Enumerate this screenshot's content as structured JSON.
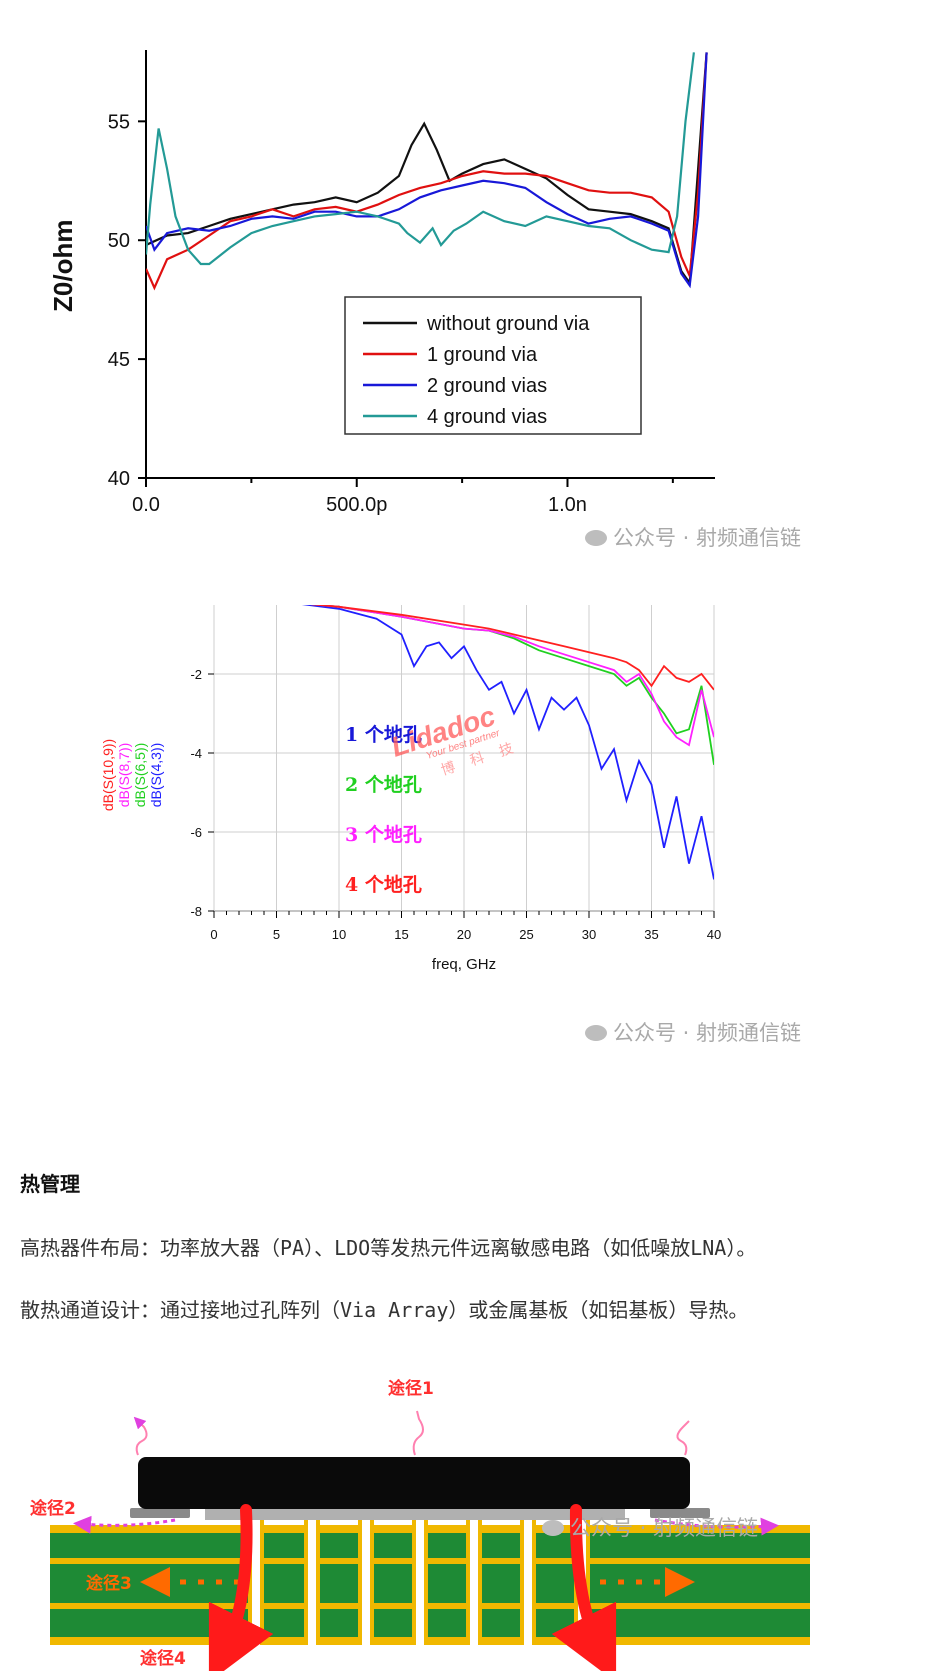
{
  "chart_data": [
    {
      "type": "line",
      "title": "",
      "ylabel": "Z0/ohm",
      "xlabel": "",
      "ylim": [
        40,
        58
      ],
      "xlim": [
        0,
        1.35
      ],
      "x_tick_labels": [
        "0.0",
        "500.0p",
        "1.0n"
      ],
      "y_tick_labels": [
        "40",
        "45",
        "50",
        "55"
      ],
      "legend_position": "center-right",
      "series": [
        {
          "name": "without ground via",
          "color": "#111111",
          "points": [
            [
              0,
              49.8
            ],
            [
              0.05,
              50.2
            ],
            [
              0.1,
              50.3
            ],
            [
              0.15,
              50.6
            ],
            [
              0.2,
              50.9
            ],
            [
              0.25,
              51.1
            ],
            [
              0.3,
              51.3
            ],
            [
              0.35,
              51.5
            ],
            [
              0.4,
              51.6
            ],
            [
              0.45,
              51.8
            ],
            [
              0.5,
              51.6
            ],
            [
              0.55,
              52.0
            ],
            [
              0.6,
              52.7
            ],
            [
              0.63,
              54.0
            ],
            [
              0.66,
              54.9
            ],
            [
              0.69,
              53.8
            ],
            [
              0.72,
              52.5
            ],
            [
              0.75,
              52.8
            ],
            [
              0.8,
              53.2
            ],
            [
              0.85,
              53.4
            ],
            [
              0.9,
              53.0
            ],
            [
              0.95,
              52.6
            ],
            [
              1.0,
              51.9
            ],
            [
              1.05,
              51.3
            ],
            [
              1.1,
              51.2
            ],
            [
              1.15,
              51.1
            ],
            [
              1.2,
              50.8
            ],
            [
              1.24,
              50.5
            ],
            [
              1.27,
              48.7
            ],
            [
              1.29,
              48.2
            ],
            [
              1.31,
              53.0
            ],
            [
              1.33,
              57.9
            ]
          ]
        },
        {
          "name": "1 ground via",
          "color": "#e01010",
          "points": [
            [
              0,
              48.8
            ],
            [
              0.02,
              48.0
            ],
            [
              0.05,
              49.2
            ],
            [
              0.1,
              49.6
            ],
            [
              0.15,
              50.2
            ],
            [
              0.2,
              50.8
            ],
            [
              0.25,
              51.0
            ],
            [
              0.3,
              51.3
            ],
            [
              0.35,
              51.0
            ],
            [
              0.4,
              51.3
            ],
            [
              0.45,
              51.4
            ],
            [
              0.5,
              51.2
            ],
            [
              0.55,
              51.5
            ],
            [
              0.6,
              51.9
            ],
            [
              0.65,
              52.2
            ],
            [
              0.7,
              52.4
            ],
            [
              0.75,
              52.7
            ],
            [
              0.8,
              52.9
            ],
            [
              0.85,
              52.8
            ],
            [
              0.9,
              52.8
            ],
            [
              0.95,
              52.7
            ],
            [
              1.0,
              52.4
            ],
            [
              1.05,
              52.1
            ],
            [
              1.1,
              52.0
            ],
            [
              1.15,
              52.0
            ],
            [
              1.2,
              51.8
            ],
            [
              1.24,
              51.2
            ],
            [
              1.27,
              49.3
            ],
            [
              1.29,
              48.5
            ],
            [
              1.31,
              52.0
            ],
            [
              1.33,
              57.9
            ]
          ]
        },
        {
          "name": "2 ground vias",
          "color": "#1818d8",
          "points": [
            [
              0,
              50.6
            ],
            [
              0.02,
              49.6
            ],
            [
              0.05,
              50.3
            ],
            [
              0.1,
              50.5
            ],
            [
              0.15,
              50.4
            ],
            [
              0.2,
              50.6
            ],
            [
              0.25,
              50.9
            ],
            [
              0.3,
              51.0
            ],
            [
              0.35,
              50.9
            ],
            [
              0.4,
              51.2
            ],
            [
              0.45,
              51.2
            ],
            [
              0.5,
              51.0
            ],
            [
              0.55,
              51.0
            ],
            [
              0.6,
              51.3
            ],
            [
              0.65,
              51.8
            ],
            [
              0.7,
              52.1
            ],
            [
              0.75,
              52.3
            ],
            [
              0.8,
              52.5
            ],
            [
              0.85,
              52.4
            ],
            [
              0.9,
              52.2
            ],
            [
              0.95,
              51.6
            ],
            [
              1.0,
              51.1
            ],
            [
              1.05,
              50.7
            ],
            [
              1.1,
              50.9
            ],
            [
              1.15,
              51.0
            ],
            [
              1.2,
              50.7
            ],
            [
              1.24,
              50.4
            ],
            [
              1.27,
              48.6
            ],
            [
              1.29,
              48.1
            ],
            [
              1.31,
              51.0
            ],
            [
              1.33,
              57.9
            ]
          ]
        },
        {
          "name": "4 ground vias",
          "color": "#239a96",
          "points": [
            [
              0,
              49.4
            ],
            [
              0.01,
              51.5
            ],
            [
              0.03,
              54.7
            ],
            [
              0.05,
              53.0
            ],
            [
              0.07,
              51.0
            ],
            [
              0.1,
              49.6
            ],
            [
              0.13,
              49.0
            ],
            [
              0.15,
              49.0
            ],
            [
              0.2,
              49.7
            ],
            [
              0.25,
              50.3
            ],
            [
              0.3,
              50.6
            ],
            [
              0.35,
              50.8
            ],
            [
              0.4,
              51.0
            ],
            [
              0.45,
              51.1
            ],
            [
              0.5,
              51.2
            ],
            [
              0.55,
              51.0
            ],
            [
              0.6,
              50.7
            ],
            [
              0.62,
              50.3
            ],
            [
              0.65,
              49.9
            ],
            [
              0.68,
              50.5
            ],
            [
              0.7,
              49.8
            ],
            [
              0.73,
              50.4
            ],
            [
              0.76,
              50.7
            ],
            [
              0.8,
              51.2
            ],
            [
              0.85,
              50.8
            ],
            [
              0.9,
              50.6
            ],
            [
              0.95,
              51.0
            ],
            [
              1.0,
              50.8
            ],
            [
              1.05,
              50.6
            ],
            [
              1.1,
              50.5
            ],
            [
              1.15,
              50.0
            ],
            [
              1.2,
              49.6
            ],
            [
              1.24,
              49.5
            ],
            [
              1.26,
              51.0
            ],
            [
              1.28,
              55.0
            ],
            [
              1.3,
              57.9
            ]
          ]
        }
      ]
    },
    {
      "type": "line",
      "title": "",
      "xlabel": "freq, GHz",
      "ylabel_lines": [
        "dB(S(10,9))",
        "dB(S(8,7))",
        "dB(S(6,5))",
        "dB(S(4,3))"
      ],
      "ylabel_colors": [
        "#ff2020",
        "#ff20ff",
        "#20d020",
        "#2020ff"
      ],
      "xlim": [
        0,
        40
      ],
      "ylim": [
        -8,
        0
      ],
      "x_tick_labels": [
        "0",
        "5",
        "10",
        "15",
        "20",
        "25",
        "30",
        "35",
        "40"
      ],
      "y_tick_labels": [
        "0",
        "-2",
        "-4",
        "-6",
        "-8"
      ],
      "series": [
        {
          "name": "dB(S(4,3))",
          "color": "#2020ff",
          "points": [
            [
              0,
              0
            ],
            [
              5,
              -0.15
            ],
            [
              10,
              -0.35
            ],
            [
              13,
              -0.6
            ],
            [
              15,
              -1.0
            ],
            [
              16,
              -1.8
            ],
            [
              17,
              -1.3
            ],
            [
              18,
              -1.2
            ],
            [
              19,
              -1.6
            ],
            [
              20,
              -1.3
            ],
            [
              21,
              -1.9
            ],
            [
              22,
              -2.4
            ],
            [
              23,
              -2.2
            ],
            [
              24,
              -3.0
            ],
            [
              25,
              -2.4
            ],
            [
              26,
              -3.4
            ],
            [
              27,
              -2.6
            ],
            [
              28,
              -2.9
            ],
            [
              29,
              -2.6
            ],
            [
              30,
              -3.3
            ],
            [
              31,
              -4.4
            ],
            [
              32,
              -3.9
            ],
            [
              33,
              -5.2
            ],
            [
              34,
              -4.2
            ],
            [
              35,
              -4.8
            ],
            [
              36,
              -6.4
            ],
            [
              37,
              -5.1
            ],
            [
              38,
              -6.8
            ],
            [
              39,
              -5.6
            ],
            [
              40,
              -7.2
            ]
          ]
        },
        {
          "name": "dB(S(6,5))",
          "color": "#20d020",
          "points": [
            [
              0,
              0
            ],
            [
              5,
              -0.15
            ],
            [
              10,
              -0.3
            ],
            [
              15,
              -0.55
            ],
            [
              20,
              -0.85
            ],
            [
              22,
              -0.9
            ],
            [
              24,
              -1.1
            ],
            [
              26,
              -1.4
            ],
            [
              28,
              -1.6
            ],
            [
              30,
              -1.8
            ],
            [
              32,
              -2.0
            ],
            [
              33,
              -2.3
            ],
            [
              34,
              -2.1
            ],
            [
              35,
              -2.6
            ],
            [
              36,
              -3.0
            ],
            [
              37,
              -3.5
            ],
            [
              38,
              -3.4
            ],
            [
              39,
              -2.3
            ],
            [
              40,
              -4.3
            ]
          ]
        },
        {
          "name": "dB(S(8,7))",
          "color": "#ff20ff",
          "points": [
            [
              0,
              0
            ],
            [
              5,
              -0.15
            ],
            [
              10,
              -0.3
            ],
            [
              15,
              -0.55
            ],
            [
              20,
              -0.85
            ],
            [
              22,
              -0.9
            ],
            [
              24,
              -1.05
            ],
            [
              26,
              -1.3
            ],
            [
              28,
              -1.5
            ],
            [
              30,
              -1.7
            ],
            [
              32,
              -1.9
            ],
            [
              33,
              -2.2
            ],
            [
              34,
              -2.0
            ],
            [
              35,
              -2.5
            ],
            [
              36,
              -3.2
            ],
            [
              37,
              -3.6
            ],
            [
              38,
              -3.8
            ],
            [
              39,
              -2.4
            ],
            [
              40,
              -3.6
            ]
          ]
        },
        {
          "name": "dB(S(10,9))",
          "color": "#ff2020",
          "points": [
            [
              0,
              0
            ],
            [
              5,
              -0.15
            ],
            [
              10,
              -0.3
            ],
            [
              15,
              -0.5
            ],
            [
              20,
              -0.75
            ],
            [
              22,
              -0.85
            ],
            [
              24,
              -1.0
            ],
            [
              26,
              -1.15
            ],
            [
              28,
              -1.3
            ],
            [
              30,
              -1.45
            ],
            [
              32,
              -1.6
            ],
            [
              33,
              -1.7
            ],
            [
              34,
              -1.9
            ],
            [
              35,
              -2.3
            ],
            [
              36,
              -1.8
            ],
            [
              37,
              -2.1
            ],
            [
              38,
              -2.2
            ],
            [
              39,
              -2.0
            ],
            [
              40,
              -2.4
            ]
          ]
        }
      ],
      "annotations": [
        {
          "text": "1 个地孔",
          "color": "#1818d8"
        },
        {
          "text": "2 个地孔",
          "color": "#20d020"
        },
        {
          "text": "3 个地孔",
          "color": "#ff20ff"
        },
        {
          "text": "4 个地孔",
          "color": "#ff2020"
        }
      ],
      "stamp_text": [
        "Lidadoc",
        "Your best partner",
        "博 科 技"
      ]
    }
  ],
  "watermark": "公众号 · 射频通信链",
  "section": {
    "heading": "热管理",
    "paragraphs": [
      "高热器件布局：功率放大器（PA）、LDO等发热元件远离敏感电路（如低噪放LNA）。",
      "散热通道设计：通过接地过孔阵列（Via Array）或金属基板（如铝基板）导热。"
    ]
  },
  "diagram": {
    "labels": [
      "途径1",
      "途径2",
      "途径3",
      "途径4"
    ],
    "colors": {
      "component": "#0a0a0a",
      "board": "#1e8a35",
      "copper": "#f0b800",
      "heat": "#ff1a1a",
      "path3": "#ff6a00",
      "path2": "#e040e0",
      "path1": "#ff80b0"
    }
  }
}
